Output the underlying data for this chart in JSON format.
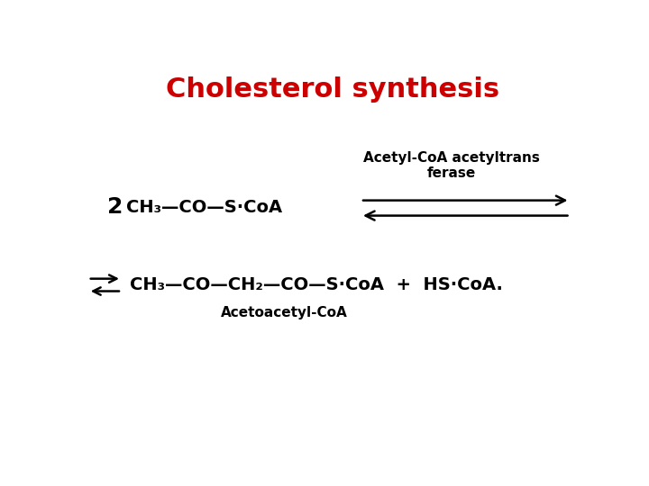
{
  "title": "Cholesterol synthesis",
  "title_color": "#cc0000",
  "title_fontsize": 22,
  "title_fontweight": "bold",
  "bg_color": "#ffffff",
  "enzyme_label": "Acetyl-CoA acetyltrans\nferase",
  "enzyme_fontsize": 11,
  "enzyme_fontweight": "bold",
  "reactant_2": "2",
  "reactant_formula": "CH₃—CO—S·CoA",
  "product_formula": "CH₃—CO—CH₂—CO—S·CoA  +  HS·CoA.",
  "product_name": "Acetoacetyl-CoA",
  "product_name_fontsize": 11,
  "product_name_fontweight": "bold",
  "formula_fontsize": 14,
  "formula_fontweight": "bold",
  "num2_fontsize": 18,
  "arrow_color": "#000000",
  "text_color": "#000000"
}
